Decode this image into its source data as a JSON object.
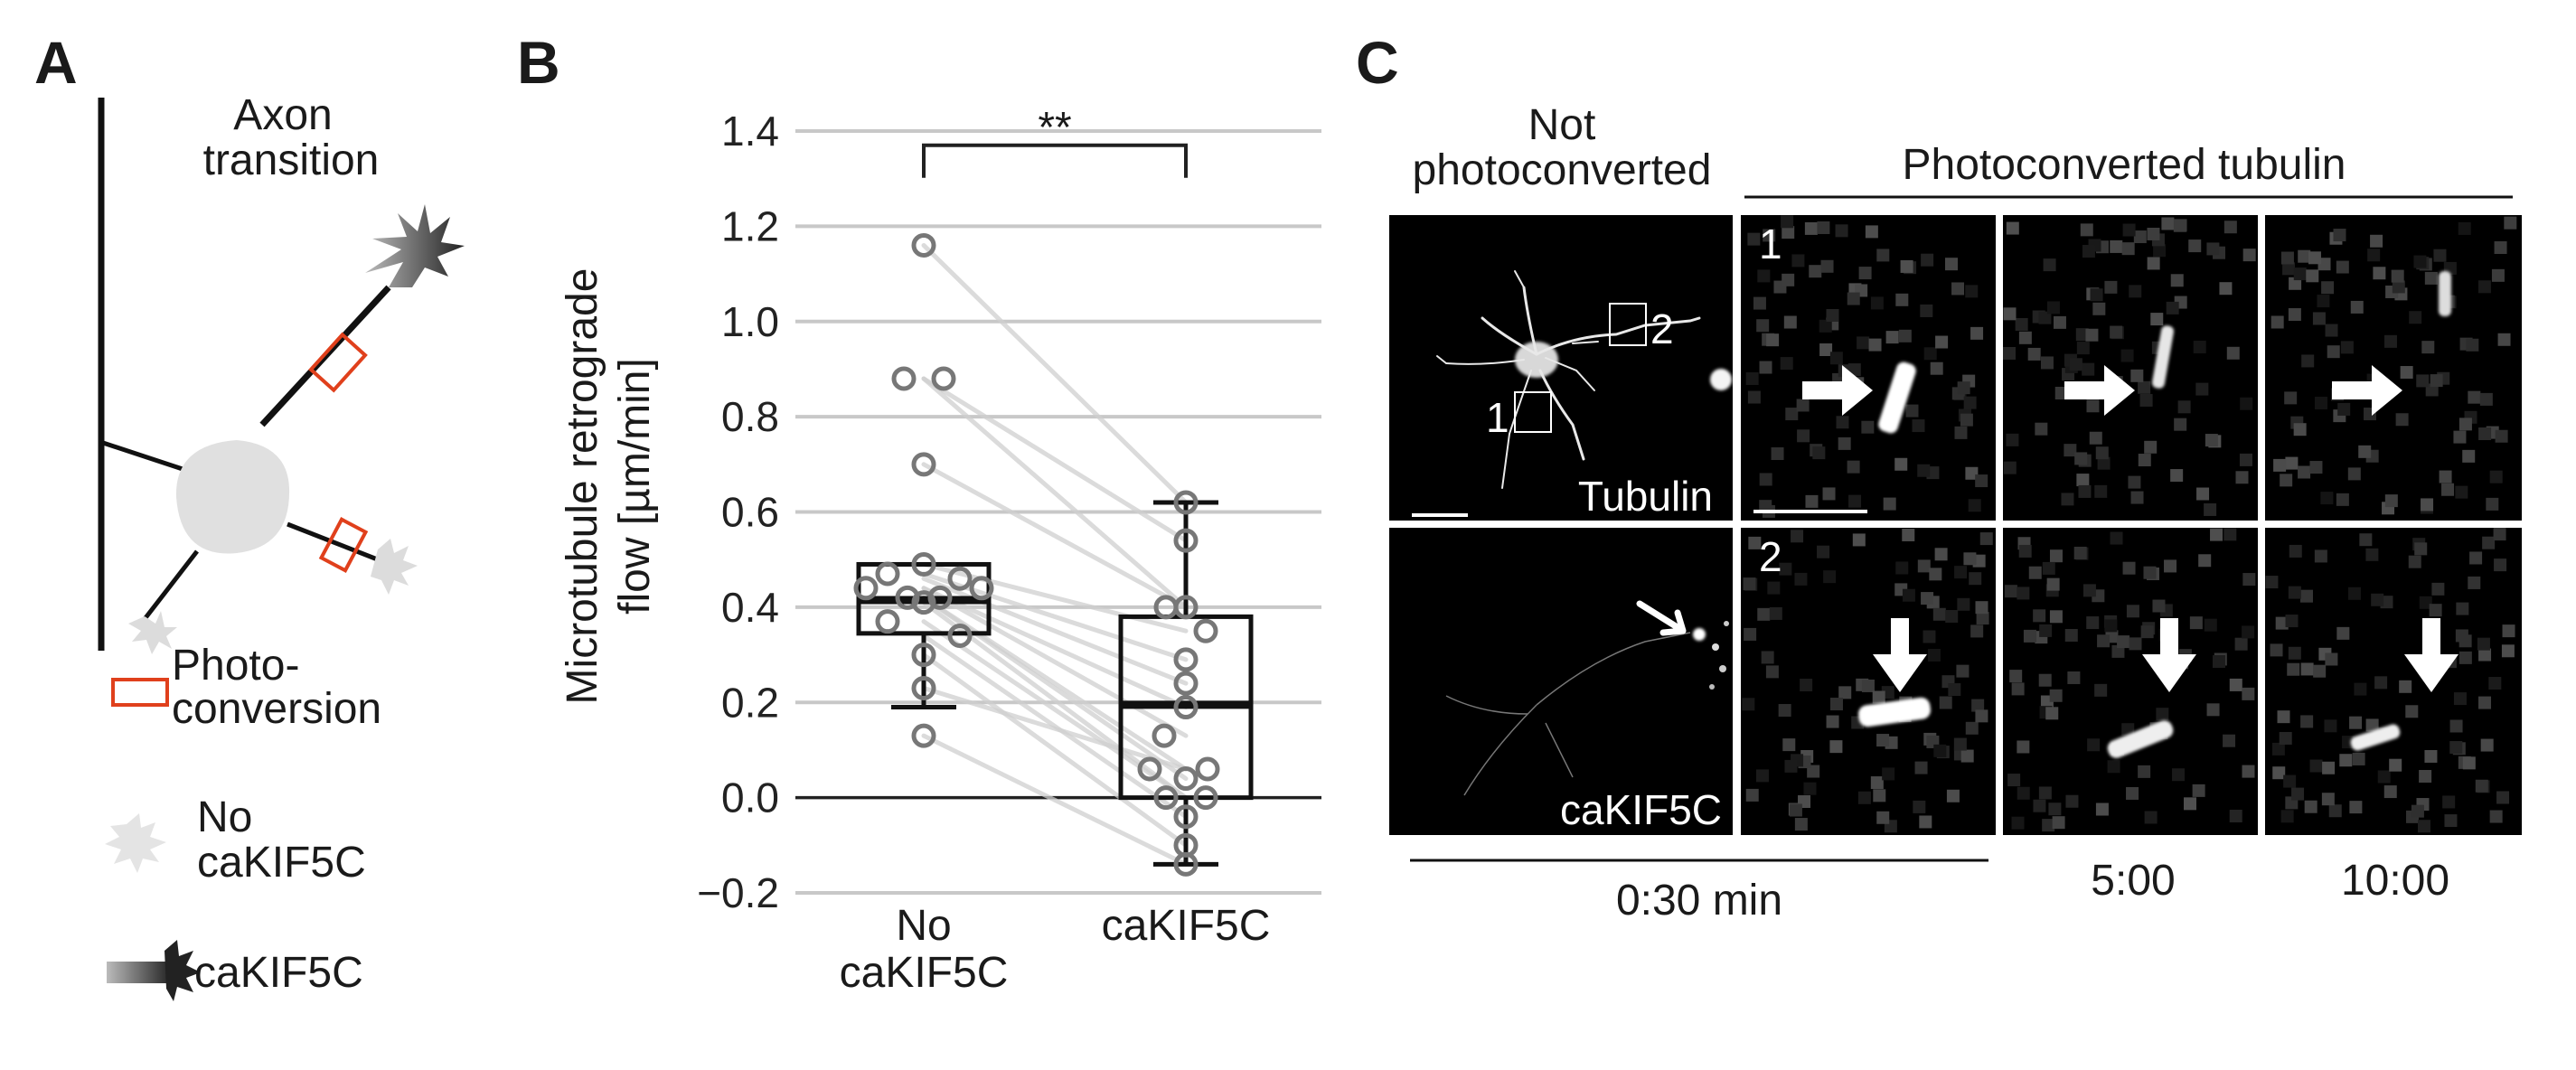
{
  "panels": {
    "a": "A",
    "b": "B",
    "c": "C"
  },
  "panel_a": {
    "axon_title_line1": "Axon",
    "axon_title_line2": "transition",
    "legend_photo_line1": "Photo-",
    "legend_photo_line2": "conversion",
    "legend_no_line1": "No",
    "legend_no_line2": "caKIF5C",
    "legend_ca": "caKIF5C",
    "colors": {
      "photoconversion": "#e0401c",
      "no_kif": "#dddddd",
      "kif": "#333333"
    }
  },
  "panel_c": {
    "header_not_line1": "Not",
    "header_not_line2": "photoconverted",
    "header_photo": "Photoconverted tubulin",
    "row1_label": "Tubulin",
    "row2_label": "caKIF5C",
    "roi1": "1",
    "roi2": "2",
    "inset1": "1",
    "inset2": "2",
    "time1": "0:30 min",
    "time2": "5:00",
    "time3": "10:00"
  },
  "chart_data": {
    "type": "box",
    "ylabel_line1": "Microtubule retrograde",
    "ylabel_line2": "flow [µm/min]",
    "categories": [
      "No\ncaKIF5C",
      "caKIF5C"
    ],
    "category_lines": [
      [
        "No",
        "caKIF5C"
      ],
      [
        "caKIF5C"
      ]
    ],
    "ylim": [
      -0.2,
      1.4
    ],
    "yticks": [
      -0.2,
      0.0,
      0.2,
      0.4,
      0.6,
      0.8,
      1.0,
      1.2,
      1.4
    ],
    "ytick_labels": [
      "−0.2",
      "0.0",
      "0.2",
      "0.4",
      "0.6",
      "0.8",
      "1.0",
      "1.2",
      "1.4"
    ],
    "grid": true,
    "significance": "**",
    "boxes": [
      {
        "whisker_low": 0.19,
        "q1": 0.345,
        "median": 0.415,
        "q3": 0.49,
        "whisker_high": 0.49
      },
      {
        "whisker_low": -0.14,
        "q1": 0.0,
        "median": 0.195,
        "q3": 0.38,
        "whisker_high": 0.62
      }
    ],
    "pairs": [
      [
        1.16,
        0.62
      ],
      [
        0.88,
        0.54
      ],
      [
        0.88,
        0.4
      ],
      [
        0.7,
        0.4
      ],
      [
        0.49,
        0.35
      ],
      [
        0.47,
        0.29
      ],
      [
        0.46,
        0.24
      ],
      [
        0.44,
        0.19
      ],
      [
        0.44,
        0.13
      ],
      [
        0.42,
        0.06
      ],
      [
        0.42,
        0.04
      ],
      [
        0.41,
        0.0
      ],
      [
        0.37,
        0.0
      ],
      [
        0.34,
        -0.04
      ],
      [
        0.3,
        -0.1
      ],
      [
        0.23,
        0.06
      ],
      [
        0.13,
        -0.14
      ]
    ]
  }
}
